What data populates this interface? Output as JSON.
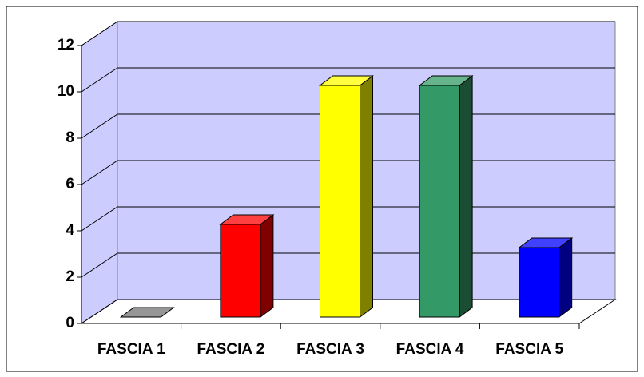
{
  "chart_data": {
    "type": "bar3d",
    "categories": [
      "FASCIA 1",
      "FASCIA 2",
      "FASCIA 3",
      "FASCIA 4",
      "FASCIA 5"
    ],
    "values": [
      0,
      4,
      10,
      10,
      3
    ],
    "colors": [
      "#969696",
      "#ff0000",
      "#ffff00",
      "#339966",
      "#0000ff"
    ],
    "ylim": [
      0,
      12
    ],
    "yticks": [
      0,
      2,
      4,
      6,
      8,
      10,
      12
    ],
    "grid": true
  }
}
